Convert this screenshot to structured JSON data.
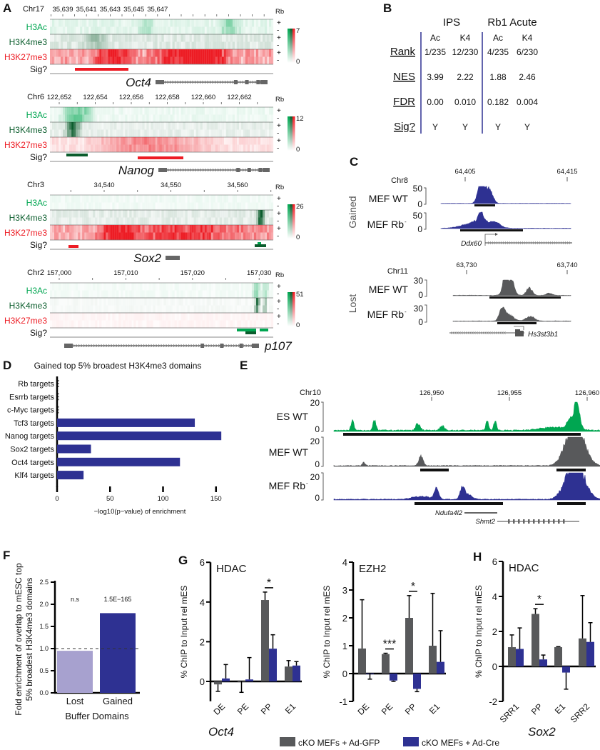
{
  "colors": {
    "gray": "#58595b",
    "blue": "#2e3192",
    "lavender": "#a7a1cf",
    "green": "#00a651",
    "darkgreen": "#0b5d2d",
    "red": "#ed1c24"
  },
  "panel_labels": {
    "A": "A",
    "B": "B",
    "C": "C",
    "D": "D",
    "E": "E",
    "F": "F",
    "G": "G",
    "H": "H"
  },
  "panelA": {
    "row_labels": [
      "H3Ac",
      "H3K4me3",
      "H3K27me3"
    ],
    "sig_label": "Sig?",
    "rb_label": "Rb",
    "plus": "+",
    "minus": "-",
    "colorbar_min": "0",
    "tracks": [
      {
        "chr": "Chr17",
        "ticks": [
          "35,639",
          "35,641",
          "35,643",
          "35,645",
          "35,647"
        ],
        "gene": "Oct4",
        "colorbar_max": "7"
      },
      {
        "chr": "Chr6",
        "ticks": [
          "122,652",
          "122,654",
          "122,656",
          "122,658",
          "122,660",
          "122,662"
        ],
        "gene": "Nanog",
        "colorbar_max": "12"
      },
      {
        "chr": "Chr3",
        "ticks": [
          "34,540",
          "34,550",
          "34,560"
        ],
        "gene": "Sox2",
        "colorbar_max": "26"
      },
      {
        "chr": "Chr2",
        "ticks": [
          "157,000",
          "157,010",
          "157,020",
          "157,030"
        ],
        "gene": "p107",
        "colorbar_max": "51"
      }
    ]
  },
  "panelB": {
    "groups": [
      "IPS",
      "Rb1 Acute"
    ],
    "columns": [
      "Ac",
      "K4",
      "Ac",
      "K4"
    ],
    "rows": [
      {
        "label": "Rank",
        "values": [
          "1/235",
          "12/230",
          "4/235",
          "6/230"
        ]
      },
      {
        "label": "NES",
        "values": [
          "3.99",
          "2.22",
          "1.88",
          "2.46"
        ]
      },
      {
        "label": "FDR",
        "values": [
          "0.00",
          "0.010",
          "0.182",
          "0.004"
        ]
      },
      {
        "label": "Sig?",
        "values": [
          "Y",
          "Y",
          "Y",
          "Y"
        ]
      }
    ]
  },
  "panelC": {
    "gained": {
      "group": "Gained",
      "chr": "Chr8",
      "ticks": [
        "64,405",
        "64,415"
      ],
      "tracks": [
        {
          "label": "MEF WT",
          "ymax": "50",
          "ymin": "0"
        },
        {
          "label": "MEF Rb",
          "sup": "-",
          "ymax": "50",
          "ymin": "0"
        }
      ],
      "gene": "Ddx60"
    },
    "lost": {
      "group": "Lost",
      "chr": "Chr11",
      "ticks": [
        "63,730",
        "63,740"
      ],
      "tracks": [
        {
          "label": "MEF WT",
          "ymax": "30",
          "ymin": "0"
        },
        {
          "label": "MEF Rb",
          "sup": "-",
          "ymax": "30",
          "ymin": "0"
        }
      ],
      "gene": "Hs3st3b1"
    }
  },
  "panelE": {
    "chr": "Chr10",
    "ticks": [
      "126,950",
      "126,955",
      "126,960"
    ],
    "tracks": [
      {
        "label": "ES WT",
        "ymax": "20",
        "ymin": "0"
      },
      {
        "label": "MEF WT",
        "ymax": "20",
        "ymin": "0"
      },
      {
        "label": "MEF Rb",
        "sup": "-",
        "ymax": "20",
        "ymin": "0"
      }
    ],
    "genes": [
      "Ndufa4l2",
      "Shmt2"
    ]
  },
  "legend": {
    "gfp": "cKO MEFs + Ad-GFP",
    "cre": "cKO MEFs + Ad-Cre"
  },
  "chart_data": [
    {
      "id": "D",
      "type": "bar",
      "orientation": "horizontal",
      "title": "Gained top 5% broadest H3K4me3 domains",
      "xlabel": "−log10(p−value) of enrichment",
      "ylabel": "",
      "categories": [
        "Rb targets",
        "Esrrb targets",
        "c-Myc targets",
        "Tcf3 targets",
        "Nanog targets",
        "Sox2 targets",
        "Oct4 targets",
        "Klf4 targets"
      ],
      "values": [
        0,
        0,
        0,
        130,
        155,
        32,
        116,
        25
      ],
      "xticks": [
        "0",
        "50",
        "100",
        "150"
      ],
      "xlim": [
        0,
        160
      ]
    },
    {
      "id": "F",
      "type": "bar",
      "ylabel": "Fold enrichment of overlap to mESC top 5% broadest H3K4me3 domains",
      "xlabel": "Buffer Domains",
      "categories": [
        "Lost",
        "Gained"
      ],
      "values": [
        0.95,
        1.8
      ],
      "annotations": [
        "n.s",
        "1.5E−165"
      ],
      "reference_line": 1.0,
      "yticks": [
        "0.0",
        "0.5",
        "1.0",
        "1.5",
        "2.0",
        "2.5"
      ],
      "ylim": [
        0,
        2.5
      ]
    },
    {
      "id": "G1",
      "type": "bar",
      "title": "HDAC",
      "gene": "Oct4",
      "ylabel": "% ChIP to Input rel mES",
      "categories": [
        "DE",
        "PE",
        "PP",
        "E1"
      ],
      "series": [
        {
          "name": "cKO MEFs + Ad-GFP",
          "values": [
            -0.15,
            0,
            4.1,
            0.75
          ],
          "err": [
            0.35,
            0.55,
            0.4,
            0.3
          ]
        },
        {
          "name": "cKO MEFs + Ad-Cre",
          "values": [
            0.15,
            0.1,
            1.65,
            0.8
          ],
          "err": [
            0.7,
            1.1,
            0.7,
            0.2
          ]
        }
      ],
      "significance": [
        {
          "category": "PP",
          "label": "*"
        }
      ],
      "yticks": [
        "0",
        "2",
        "4",
        "6"
      ],
      "ylim": [
        -1,
        6
      ]
    },
    {
      "id": "G2",
      "type": "bar",
      "title": "EZH2",
      "ylabel": "% ChIP to Input rel mES",
      "categories": [
        "DE",
        "PE",
        "PP",
        "E1"
      ],
      "series": [
        {
          "name": "cKO MEFs + Ad-GFP",
          "values": [
            0.9,
            0.7,
            2.0,
            1.0
          ],
          "err": [
            1.75,
            0.03,
            0.8,
            1.88
          ]
        },
        {
          "name": "cKO MEFs + Ad-Cre",
          "values": [
            0,
            -0.25,
            -0.55,
            0.42
          ],
          "err": [
            0.2,
            0.03,
            0.1,
            1.12
          ]
        }
      ],
      "significance": [
        {
          "category": "PE",
          "label": "***"
        },
        {
          "category": "PP",
          "label": "*"
        }
      ],
      "yticks": [
        "-1",
        "0",
        "1",
        "2",
        "3",
        "4"
      ],
      "ylim": [
        -1,
        4
      ]
    },
    {
      "id": "H",
      "type": "bar",
      "title": "HDAC",
      "gene": "Sox2",
      "ylabel": "% ChIP to Input rel mES",
      "categories": [
        "SRR1",
        "PP",
        "E1",
        "SRR2"
      ],
      "series": [
        {
          "name": "cKO MEFs + Ad-GFP",
          "values": [
            1.1,
            3.0,
            1.1,
            1.6
          ],
          "err": [
            0.7,
            0.3,
            0.03,
            2.45
          ]
        },
        {
          "name": "cKO MEFs + Ad-Cre",
          "values": [
            1.0,
            0.4,
            -0.35,
            1.4
          ],
          "err": [
            1.2,
            0.25,
            0.95,
            1.1
          ]
        }
      ],
      "significance": [
        {
          "category": "PP",
          "label": "*"
        }
      ],
      "yticks": [
        "-2",
        "0",
        "2",
        "4",
        "6"
      ],
      "ylim": [
        -2,
        6
      ]
    }
  ]
}
